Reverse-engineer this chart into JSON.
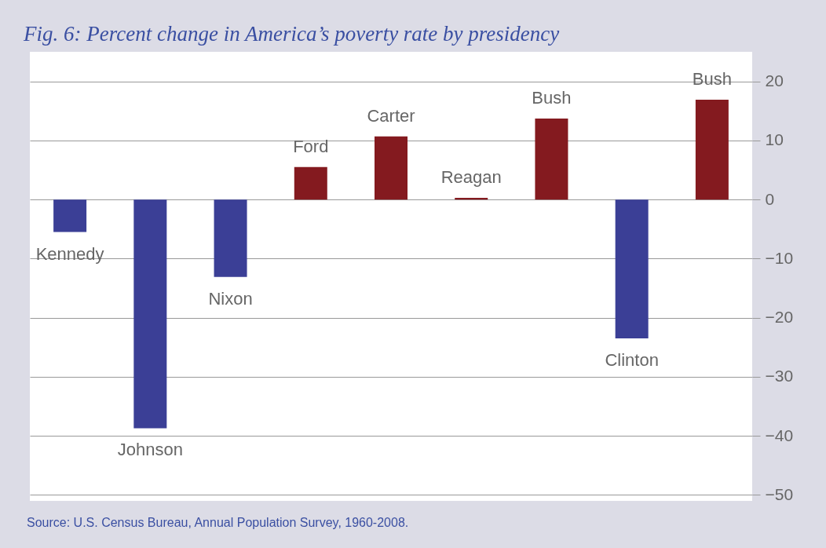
{
  "chart_data": {
    "type": "bar",
    "title": "Fig. 6: Percent change in America’s poverty rate by presidency",
    "categories": [
      "Kennedy",
      "Johnson",
      "Nixon",
      "Ford",
      "Carter",
      "Reagan",
      "Bush",
      "Clinton",
      "Bush"
    ],
    "values": [
      -5.5,
      -38.7,
      -13.1,
      5.5,
      10.7,
      0.3,
      13.7,
      -23.5,
      16.9
    ],
    "colors": [
      "#3b3f96",
      "#3b3f96",
      "#3b3f96",
      "#841a1f",
      "#841a1f",
      "#841a1f",
      "#841a1f",
      "#3b3f96",
      "#841a1f"
    ],
    "ylim": [
      -51,
      25
    ],
    "yticks": [
      -50,
      -40,
      -30,
      -20,
      -10,
      0,
      10,
      20
    ],
    "grid": "y",
    "annotations": [
      "Source: U.S. Census Bureau, Annual Population Survey, 1960-2008."
    ]
  }
}
